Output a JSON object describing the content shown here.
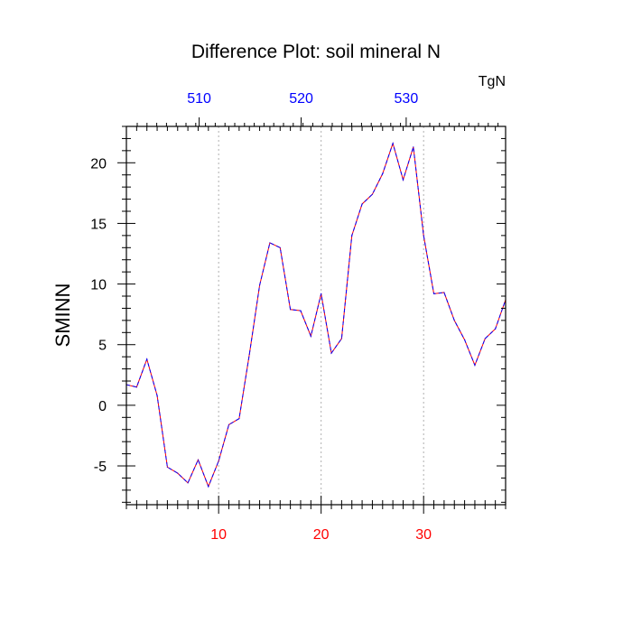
{
  "chart_data": {
    "type": "line",
    "title": "Difference Plot: soil mineral N",
    "ylabel": "SMINN",
    "top_axis_unit": "TgN",
    "xlim": [
      1,
      38
    ],
    "ylim": [
      -8.2,
      23
    ],
    "grid": "vertical dotted lines at major bottom ticks",
    "x_ticks": [
      10,
      20,
      30
    ],
    "x_tick_labels": [
      "10",
      "20",
      "30"
    ],
    "x_tick_color": "#ff0000",
    "top_ticks": [
      8.1,
      18.05,
      28.3
    ],
    "top_tick_labels": [
      "510",
      "520",
      "530"
    ],
    "top_tick_color": "#0000ff",
    "y_ticks": [
      -5,
      0,
      5,
      10,
      15,
      20
    ],
    "y_tick_labels": [
      "-5",
      "0",
      "5",
      "10",
      "15",
      "20"
    ],
    "series": [
      {
        "line_color": "#ff0000",
        "dash_color": "#0000ff",
        "x": [
          1,
          2,
          3,
          4,
          5,
          6,
          7,
          8,
          9,
          10,
          11,
          12,
          13,
          14,
          15,
          16,
          17,
          18,
          19,
          20,
          21,
          22,
          23,
          24,
          25,
          26,
          27,
          28,
          29,
          30,
          31,
          32,
          33,
          34,
          35,
          36,
          37,
          38
        ],
        "values": [
          1.7,
          1.5,
          3.8,
          0.8,
          -5.1,
          -5.6,
          -6.4,
          -4.5,
          -6.7,
          -4.6,
          -1.6,
          -1.1,
          4.2,
          9.9,
          13.4,
          13.0,
          7.9,
          7.8,
          5.7,
          9.2,
          4.3,
          5.5,
          14.0,
          16.6,
          17.4,
          19.1,
          21.6,
          18.6,
          21.3,
          14.0,
          9.2,
          9.3,
          7.0,
          5.4,
          3.3,
          5.5,
          6.3,
          8.7
        ]
      }
    ]
  }
}
